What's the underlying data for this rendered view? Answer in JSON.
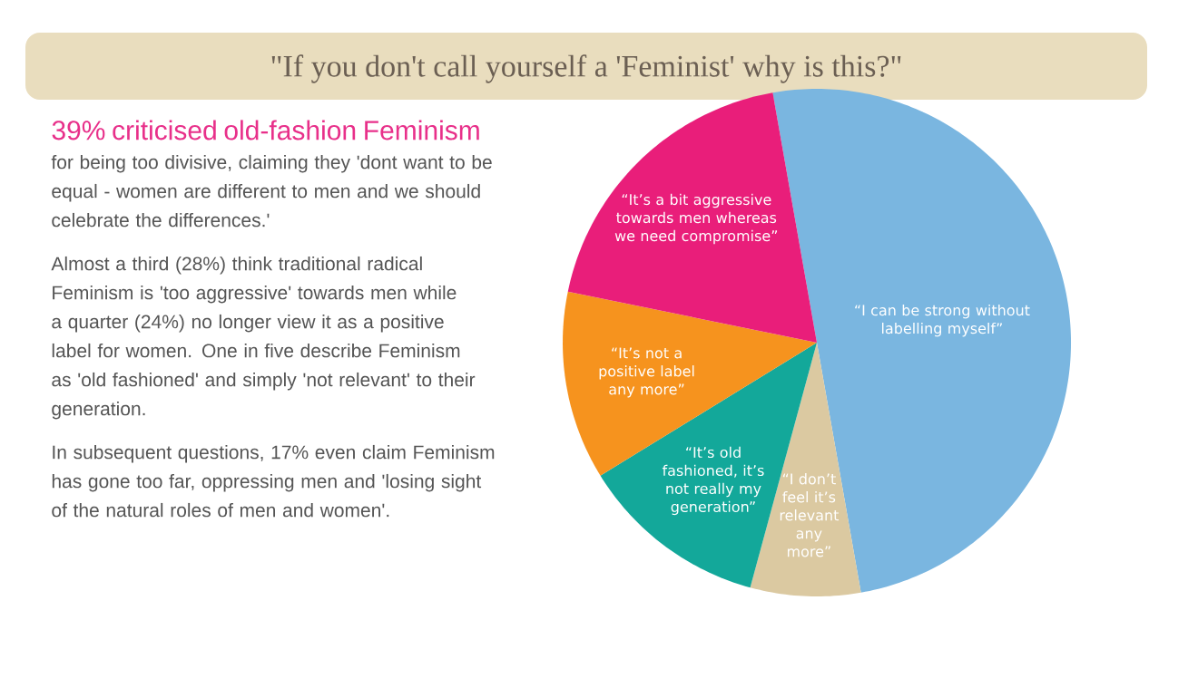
{
  "chart_data": {
    "type": "pie",
    "title": "\"If you don't call yourself a 'Feminist' why is this?\"",
    "categories": [
      "“I can be strong without labelling myself”",
      "“I don’t feel it’s relevant any more”",
      "“It’s old fashioned, it’s not really my generation”",
      "“It’s not a positive label any more”",
      "“It’s a bit aggressive towards men whereas we need compromise”"
    ],
    "values": [
      50,
      7,
      12,
      12,
      19
    ],
    "colors": [
      "#7ab6e0",
      "#dbc9a1",
      "#13a89a",
      "#f6931e",
      "#e91e7a"
    ],
    "annotations": [
      "39% criticised old-fashion Feminism",
      "for being too divisive, claiming they 'dont want to be equal - women are different to men and we should celebrate the differences.'",
      "Almost a third (28%) think traditional radical Feminism is 'too aggressive' towards men while a quarter (24%) no longer view it as a positive label for women. One in five describe Feminism as 'old fashioned' and simply 'not relevant' to their generation.",
      "In subsequent questions, 17% even claim Feminism has gone too far, oppressing men and 'losing sight of the natural roles of men and women'."
    ]
  }
}
